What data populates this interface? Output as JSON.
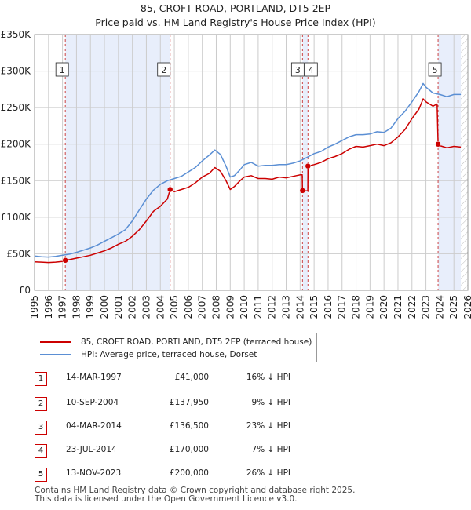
{
  "title": {
    "line1": "85, CROFT ROAD, PORTLAND, DT5 2EP",
    "line2": "Price paid vs. HM Land Registry's House Price Index (HPI)"
  },
  "colors": {
    "property": "#cc0000",
    "hpi": "#5b8fd4",
    "shade": "#e8eefb",
    "grid": "#cccccc",
    "vline": "#cc4444"
  },
  "legend": {
    "property_label": "85, CROFT ROAD, PORTLAND, DT5 2EP (terraced house)",
    "hpi_label": "HPI: Average price, terraced house, Dorset"
  },
  "sales": [
    {
      "num": "1",
      "date": "14-MAR-1997",
      "price": "£41,000",
      "hpi": "16% ↓ HPI"
    },
    {
      "num": "2",
      "date": "10-SEP-2004",
      "price": "£137,950",
      "hpi": "9% ↓ HPI"
    },
    {
      "num": "3",
      "date": "04-MAR-2014",
      "price": "£136,500",
      "hpi": "23% ↓ HPI"
    },
    {
      "num": "4",
      "date": "23-JUL-2014",
      "price": "£170,000",
      "hpi": "7% ↓ HPI"
    },
    {
      "num": "5",
      "date": "13-NOV-2023",
      "price": "£200,000",
      "hpi": "26% ↓ HPI"
    }
  ],
  "footer": {
    "line1": "Contains HM Land Registry data © Crown copyright and database right 2025.",
    "line2": "This data is licensed under the Open Government Licence v3.0."
  },
  "chart_data": {
    "type": "line",
    "title": "85, CROFT ROAD, PORTLAND, DT5 2EP — Price paid vs. HM Land Registry's House Price Index (HPI)",
    "xlim": [
      1995,
      2026
    ],
    "ylim": [
      0,
      350000
    ],
    "x_ticks": [
      1995,
      1996,
      1997,
      1998,
      1999,
      2000,
      2001,
      2002,
      2003,
      2004,
      2005,
      2006,
      2007,
      2008,
      2009,
      2010,
      2011,
      2012,
      2013,
      2014,
      2015,
      2016,
      2017,
      2018,
      2019,
      2020,
      2021,
      2022,
      2023,
      2024,
      2025,
      2026
    ],
    "y_ticks": [
      {
        "value": 0,
        "label": "£0"
      },
      {
        "value": 50000,
        "label": "£50K"
      },
      {
        "value": 100000,
        "label": "£100K"
      },
      {
        "value": 150000,
        "label": "£150K"
      },
      {
        "value": 200000,
        "label": "£200K"
      },
      {
        "value": 250000,
        "label": "£250K"
      },
      {
        "value": 300000,
        "label": "£300K"
      },
      {
        "value": 350000,
        "label": "£350K"
      }
    ],
    "shaded_ranges": [
      [
        1997.2,
        2004.7
      ],
      [
        2014.17,
        2014.56
      ],
      [
        2023.87,
        2025.5
      ]
    ],
    "hatched_from": 2025.5,
    "markers": [
      {
        "label": "1",
        "x": 1997.2,
        "y": 41000
      },
      {
        "label": "2",
        "x": 2004.7,
        "y": 137950
      },
      {
        "label": "3",
        "x": 2014.17,
        "y": 136500
      },
      {
        "label": "4",
        "x": 2014.56,
        "y": 170000
      },
      {
        "label": "5",
        "x": 2023.87,
        "y": 200000
      }
    ],
    "series": [
      {
        "name": "85, CROFT ROAD, PORTLAND, DT5 2EP (terraced house)",
        "points": [
          [
            1995.0,
            39000
          ],
          [
            1995.5,
            38500
          ],
          [
            1996.0,
            38000
          ],
          [
            1996.5,
            38500
          ],
          [
            1997.0,
            39500
          ],
          [
            1997.2,
            41000
          ],
          [
            1997.5,
            42000
          ],
          [
            1998.0,
            44000
          ],
          [
            1998.5,
            46000
          ],
          [
            1999.0,
            48000
          ],
          [
            1999.5,
            51000
          ],
          [
            2000.0,
            54000
          ],
          [
            2000.5,
            58000
          ],
          [
            2001.0,
            63000
          ],
          [
            2001.5,
            67000
          ],
          [
            2002.0,
            74000
          ],
          [
            2002.5,
            83000
          ],
          [
            2003.0,
            95000
          ],
          [
            2003.5,
            108000
          ],
          [
            2004.0,
            115000
          ],
          [
            2004.5,
            125000
          ],
          [
            2004.7,
            137950
          ],
          [
            2005.0,
            135000
          ],
          [
            2005.5,
            138000
          ],
          [
            2006.0,
            141000
          ],
          [
            2006.5,
            147000
          ],
          [
            2007.0,
            155000
          ],
          [
            2007.5,
            160000
          ],
          [
            2007.9,
            168000
          ],
          [
            2008.3,
            163000
          ],
          [
            2008.7,
            150000
          ],
          [
            2009.0,
            138000
          ],
          [
            2009.3,
            142000
          ],
          [
            2009.7,
            150000
          ],
          [
            2010.0,
            155000
          ],
          [
            2010.5,
            157000
          ],
          [
            2011.0,
            153000
          ],
          [
            2011.5,
            153000
          ],
          [
            2012.0,
            152000
          ],
          [
            2012.5,
            155000
          ],
          [
            2013.0,
            154000
          ],
          [
            2013.5,
            156000
          ],
          [
            2014.0,
            158000
          ],
          [
            2014.15,
            158000
          ],
          [
            2014.17,
            136500
          ],
          [
            2014.5,
            136000
          ],
          [
            2014.55,
            136000
          ],
          [
            2014.56,
            170000
          ],
          [
            2015.0,
            172000
          ],
          [
            2015.5,
            175000
          ],
          [
            2016.0,
            180000
          ],
          [
            2016.5,
            183000
          ],
          [
            2017.0,
            187000
          ],
          [
            2017.5,
            193000
          ],
          [
            2018.0,
            197000
          ],
          [
            2018.5,
            196000
          ],
          [
            2019.0,
            198000
          ],
          [
            2019.5,
            200000
          ],
          [
            2020.0,
            198000
          ],
          [
            2020.5,
            202000
          ],
          [
            2021.0,
            210000
          ],
          [
            2021.5,
            220000
          ],
          [
            2022.0,
            235000
          ],
          [
            2022.5,
            248000
          ],
          [
            2022.8,
            262000
          ],
          [
            2023.0,
            258000
          ],
          [
            2023.5,
            252000
          ],
          [
            2023.8,
            255000
          ],
          [
            2023.87,
            200000
          ],
          [
            2024.0,
            198000
          ],
          [
            2024.5,
            195000
          ],
          [
            2025.0,
            197000
          ],
          [
            2025.5,
            196000
          ]
        ]
      },
      {
        "name": "HPI: Average price, terraced house, Dorset",
        "points": [
          [
            1995.0,
            47000
          ],
          [
            1995.5,
            46000
          ],
          [
            1996.0,
            45500
          ],
          [
            1996.5,
            46500
          ],
          [
            1997.0,
            48000
          ],
          [
            1997.5,
            49500
          ],
          [
            1998.0,
            52000
          ],
          [
            1998.5,
            55000
          ],
          [
            1999.0,
            58000
          ],
          [
            1999.5,
            62000
          ],
          [
            2000.0,
            67000
          ],
          [
            2000.5,
            72000
          ],
          [
            2001.0,
            77000
          ],
          [
            2001.5,
            83000
          ],
          [
            2002.0,
            95000
          ],
          [
            2002.5,
            110000
          ],
          [
            2003.0,
            125000
          ],
          [
            2003.5,
            137000
          ],
          [
            2004.0,
            145000
          ],
          [
            2004.5,
            150000
          ],
          [
            2005.0,
            153000
          ],
          [
            2005.5,
            156000
          ],
          [
            2006.0,
            162000
          ],
          [
            2006.5,
            168000
          ],
          [
            2007.0,
            177000
          ],
          [
            2007.5,
            185000
          ],
          [
            2007.9,
            192000
          ],
          [
            2008.3,
            186000
          ],
          [
            2008.7,
            170000
          ],
          [
            2009.0,
            155000
          ],
          [
            2009.3,
            157000
          ],
          [
            2009.7,
            165000
          ],
          [
            2010.0,
            172000
          ],
          [
            2010.5,
            175000
          ],
          [
            2011.0,
            170000
          ],
          [
            2011.5,
            171000
          ],
          [
            2012.0,
            171000
          ],
          [
            2012.5,
            172000
          ],
          [
            2013.0,
            172000
          ],
          [
            2013.5,
            174000
          ],
          [
            2014.0,
            177000
          ],
          [
            2014.5,
            182000
          ],
          [
            2015.0,
            187000
          ],
          [
            2015.5,
            190000
          ],
          [
            2016.0,
            196000
          ],
          [
            2016.5,
            200000
          ],
          [
            2017.0,
            205000
          ],
          [
            2017.5,
            210000
          ],
          [
            2018.0,
            213000
          ],
          [
            2018.5,
            213000
          ],
          [
            2019.0,
            214000
          ],
          [
            2019.5,
            217000
          ],
          [
            2020.0,
            216000
          ],
          [
            2020.5,
            222000
          ],
          [
            2021.0,
            235000
          ],
          [
            2021.5,
            245000
          ],
          [
            2022.0,
            258000
          ],
          [
            2022.5,
            272000
          ],
          [
            2022.8,
            283000
          ],
          [
            2023.0,
            278000
          ],
          [
            2023.5,
            270000
          ],
          [
            2024.0,
            268000
          ],
          [
            2024.5,
            265000
          ],
          [
            2025.0,
            268000
          ],
          [
            2025.5,
            268000
          ]
        ]
      }
    ]
  }
}
